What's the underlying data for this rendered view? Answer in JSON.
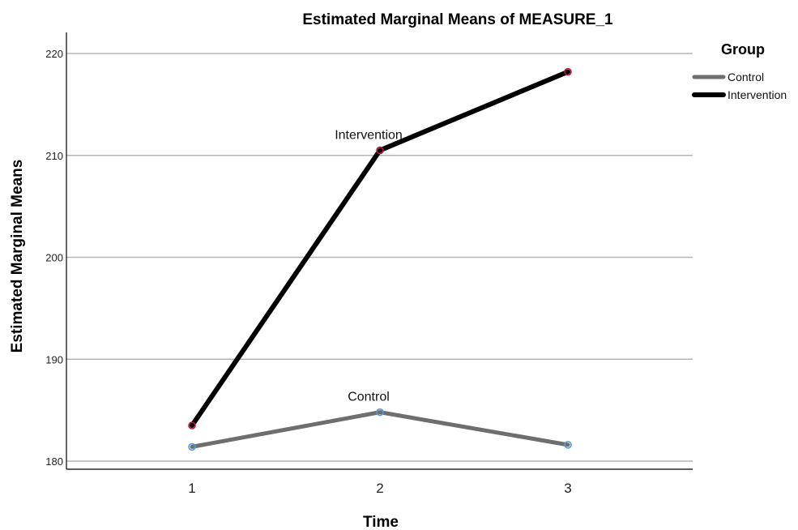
{
  "chart_data": {
    "type": "line",
    "title": "Estimated Marginal Means of MEASURE_1",
    "xlabel": "Time",
    "ylabel": "Estimated Marginal Means",
    "categories": [
      "1",
      "2",
      "3"
    ],
    "ylim": [
      180,
      220
    ],
    "yticks": [
      "180",
      "190",
      "200",
      "210",
      "220"
    ],
    "grid": true,
    "legend_title": "Group",
    "legend_position": "top-right",
    "series": [
      {
        "name": "Control",
        "values": [
          181.4,
          184.8,
          181.6
        ],
        "color": "#6e6e6e",
        "marker_color": "#5b9bd5"
      },
      {
        "name": "Intervention",
        "values": [
          183.5,
          210.5,
          218.2
        ],
        "color": "#000000",
        "marker_color": "#c0143c"
      }
    ]
  }
}
